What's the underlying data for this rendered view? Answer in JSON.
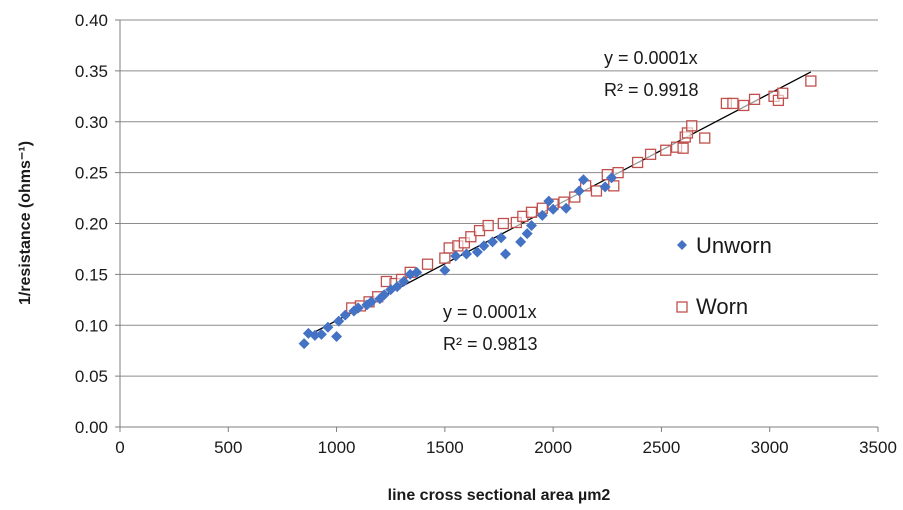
{
  "chart_data": {
    "type": "scatter",
    "title": "",
    "xlabel": "line cross sectional area µm2",
    "ylabel": "1/resistance (ohms⁻¹)",
    "xlim": [
      0,
      3500
    ],
    "ylim": [
      0,
      0.4
    ],
    "x_ticks": [
      0,
      500,
      1000,
      1500,
      2000,
      2500,
      3000,
      3500
    ],
    "x_tick_labels": [
      "0",
      "500",
      "1000",
      "1500",
      "2000",
      "2500",
      "3000",
      "3500"
    ],
    "y_ticks": [
      0,
      0.05,
      0.1,
      0.15,
      0.2,
      0.25,
      0.3,
      0.35,
      0.4
    ],
    "y_tick_labels": [
      "0.00",
      "0.05",
      "0.10",
      "0.15",
      "0.20",
      "0.25",
      "0.30",
      "0.35",
      "0.40"
    ],
    "grid": "horizontal",
    "legend_position": "right",
    "series": [
      {
        "name": "Unworn",
        "marker": "diamond",
        "color": "#4472C4",
        "points": [
          [
            850,
            0.082
          ],
          [
            870,
            0.092
          ],
          [
            900,
            0.09
          ],
          [
            930,
            0.091
          ],
          [
            960,
            0.098
          ],
          [
            1000,
            0.089
          ],
          [
            1010,
            0.104
          ],
          [
            1040,
            0.11
          ],
          [
            1080,
            0.114
          ],
          [
            1100,
            0.117
          ],
          [
            1140,
            0.12
          ],
          [
            1160,
            0.123
          ],
          [
            1200,
            0.126
          ],
          [
            1220,
            0.13
          ],
          [
            1250,
            0.135
          ],
          [
            1280,
            0.138
          ],
          [
            1310,
            0.143
          ],
          [
            1340,
            0.15
          ],
          [
            1370,
            0.152
          ],
          [
            1500,
            0.154
          ],
          [
            1550,
            0.168
          ],
          [
            1600,
            0.17
          ],
          [
            1650,
            0.172
          ],
          [
            1680,
            0.178
          ],
          [
            1720,
            0.182
          ],
          [
            1760,
            0.186
          ],
          [
            1780,
            0.17
          ],
          [
            1850,
            0.182
          ],
          [
            1880,
            0.19
          ],
          [
            1900,
            0.198
          ],
          [
            1950,
            0.208
          ],
          [
            1980,
            0.222
          ],
          [
            2000,
            0.214
          ],
          [
            2060,
            0.215
          ],
          [
            2120,
            0.232
          ],
          [
            2140,
            0.243
          ],
          [
            2240,
            0.236
          ],
          [
            2270,
            0.245
          ]
        ]
      },
      {
        "name": "Worn",
        "marker": "square-open",
        "color": "#C0504D",
        "points": [
          [
            1070,
            0.117
          ],
          [
            1110,
            0.119
          ],
          [
            1150,
            0.123
          ],
          [
            1190,
            0.128
          ],
          [
            1230,
            0.143
          ],
          [
            1270,
            0.141
          ],
          [
            1300,
            0.145
          ],
          [
            1340,
            0.152
          ],
          [
            1420,
            0.16
          ],
          [
            1500,
            0.166
          ],
          [
            1520,
            0.176
          ],
          [
            1560,
            0.178
          ],
          [
            1590,
            0.181
          ],
          [
            1620,
            0.187
          ],
          [
            1660,
            0.193
          ],
          [
            1700,
            0.198
          ],
          [
            1770,
            0.2
          ],
          [
            1830,
            0.201
          ],
          [
            1860,
            0.207
          ],
          [
            1900,
            0.211
          ],
          [
            1950,
            0.215
          ],
          [
            2000,
            0.219
          ],
          [
            2050,
            0.221
          ],
          [
            2100,
            0.226
          ],
          [
            2150,
            0.237
          ],
          [
            2200,
            0.232
          ],
          [
            2250,
            0.248
          ],
          [
            2280,
            0.237
          ],
          [
            2300,
            0.25
          ],
          [
            2390,
            0.26
          ],
          [
            2450,
            0.268
          ],
          [
            2520,
            0.272
          ],
          [
            2570,
            0.275
          ],
          [
            2600,
            0.274
          ],
          [
            2610,
            0.285
          ],
          [
            2620,
            0.289
          ],
          [
            2640,
            0.296
          ],
          [
            2700,
            0.284
          ],
          [
            2800,
            0.318
          ],
          [
            2830,
            0.318
          ],
          [
            2880,
            0.316
          ],
          [
            2930,
            0.322
          ],
          [
            3020,
            0.325
          ],
          [
            3040,
            0.321
          ],
          [
            3060,
            0.328
          ],
          [
            3190,
            0.34
          ]
        ]
      }
    ],
    "trendline": {
      "x_range": [
        860,
        3190
      ],
      "y_range": [
        0.089,
        0.349
      ],
      "color": "#000000"
    },
    "annotations": [
      {
        "id": "worn_equation",
        "lines": [
          "y = 0.0001x",
          "R² = 0.9918"
        ]
      },
      {
        "id": "unworn_equation",
        "lines": [
          "y = 0.0001x",
          "R² = 0.9813"
        ]
      }
    ]
  }
}
